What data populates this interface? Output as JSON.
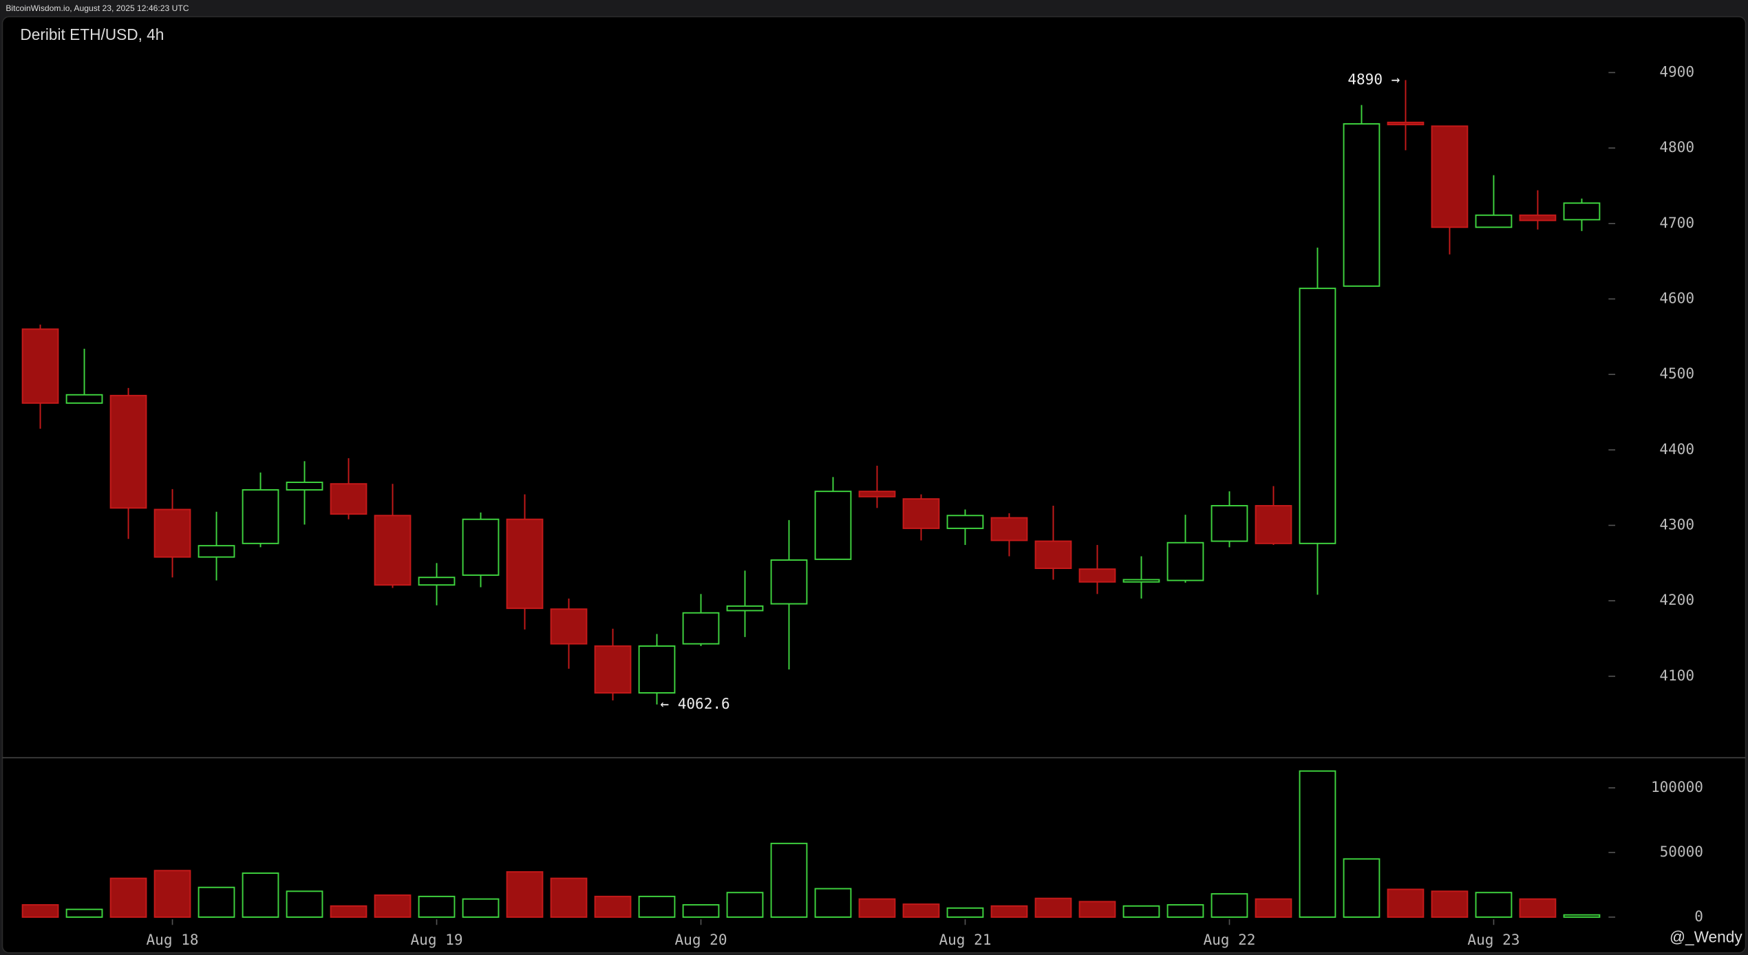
{
  "chart_data": {
    "type": "candlestick",
    "header": "BitcoinWisdom.io, August 23, 2025 12:46:23 UTC",
    "title": "Deribit ETH/USD, 4h",
    "watermark": "@_Wendy",
    "categories": [
      null,
      null,
      null,
      "Aug 18",
      null,
      null,
      null,
      null,
      null,
      "Aug 19",
      null,
      null,
      null,
      null,
      null,
      "Aug 20",
      null,
      null,
      null,
      null,
      null,
      "Aug 21",
      null,
      null,
      null,
      null,
      null,
      "Aug 22",
      null,
      null,
      null,
      null,
      null,
      "Aug 23",
      null,
      null
    ],
    "open": [
      4560,
      4462,
      4472,
      4321,
      4258,
      4276,
      4347,
      4355,
      4313,
      4221,
      4234,
      4308,
      4189,
      4140,
      4078,
      4143,
      4187,
      4196,
      4255,
      4345,
      4335,
      4296,
      4310,
      4279,
      4242,
      4225,
      4227,
      4279,
      4326,
      4276,
      4617,
      4834,
      4829,
      4695,
      4711,
      4705
    ],
    "high": [
      4566,
      4534,
      4482,
      4348,
      4318,
      4370,
      4385,
      4389,
      4355,
      4250,
      4317,
      4341,
      4203,
      4163,
      4156,
      4209,
      4240,
      4307,
      4364,
      4379,
      4341,
      4321,
      4316,
      4326,
      4274,
      4259,
      4314,
      4345,
      4352,
      4668,
      4857,
      4890,
      4829,
      4764,
      4744,
      4733
    ],
    "low": [
      4428,
      4462,
      4282,
      4231,
      4227,
      4271,
      4301,
      4308,
      4217,
      4194,
      4218,
      4162,
      4110,
      4068,
      4062.6,
      4140,
      4152,
      4109,
      4255,
      4323,
      4280,
      4274,
      4259,
      4228,
      4209,
      4203,
      4224,
      4271,
      4274,
      4208,
      4617,
      4797,
      4659,
      4695,
      4692,
      4690
    ],
    "close": [
      4462,
      4473,
      4323,
      4258,
      4273,
      4347,
      4357,
      4315,
      4221,
      4231,
      4308,
      4190,
      4143,
      4078,
      4140,
      4184,
      4193,
      4254,
      4345,
      4338,
      4296,
      4313,
      4280,
      4243,
      4225,
      4228,
      4277,
      4326,
      4276,
      4614,
      4832,
      4831,
      4695,
      4711,
      4704,
      4727
    ],
    "volume": [
      9500,
      6000,
      30000,
      36000,
      23000,
      34000,
      20000,
      8600,
      17000,
      16000,
      14000,
      35000,
      30000,
      16000,
      16000,
      9500,
      19000,
      57000,
      22000,
      14000,
      10000,
      7000,
      8600,
      14500,
      12000,
      8600,
      9500,
      18000,
      14000,
      113000,
      45000,
      21500,
      20000,
      19000,
      14000,
      1700
    ],
    "ylim": [
      3992,
      4974
    ],
    "yticks": [
      4100,
      4200,
      4300,
      4400,
      4500,
      4600,
      4700,
      4800,
      4900
    ],
    "y2lim": [
      0,
      125000
    ],
    "y2ticks": [
      0,
      50000,
      100000
    ],
    "up_color": "#3fd43f",
    "down_color": "#a01010",
    "annotations": [
      {
        "value": 4890,
        "label": "4890 →"
      },
      {
        "value": 4062.6,
        "label": "← 4062.6"
      }
    ]
  }
}
